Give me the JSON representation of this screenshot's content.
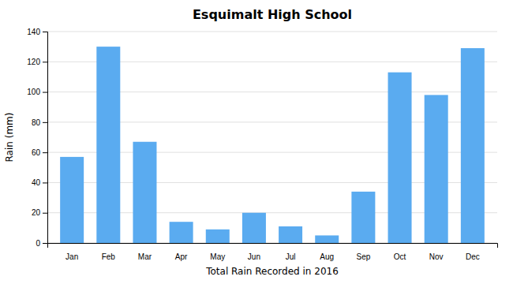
{
  "chart_data": {
    "type": "bar",
    "title": "Esquimalt High School",
    "xlabel": "Total Rain Recorded in 2016",
    "ylabel": "Rain (mm)",
    "categories": [
      "Jan",
      "Feb",
      "Mar",
      "Apr",
      "May",
      "Jun",
      "Jul",
      "Aug",
      "Sep",
      "Oct",
      "Nov",
      "Dec"
    ],
    "values": [
      57,
      130,
      67,
      14,
      9,
      20,
      11,
      5,
      34,
      113,
      98,
      129
    ],
    "color": "#5aabf0",
    "ylim": [
      0,
      140
    ],
    "yticks": [
      0,
      20,
      40,
      60,
      80,
      100,
      120,
      140
    ],
    "grid": true
  }
}
